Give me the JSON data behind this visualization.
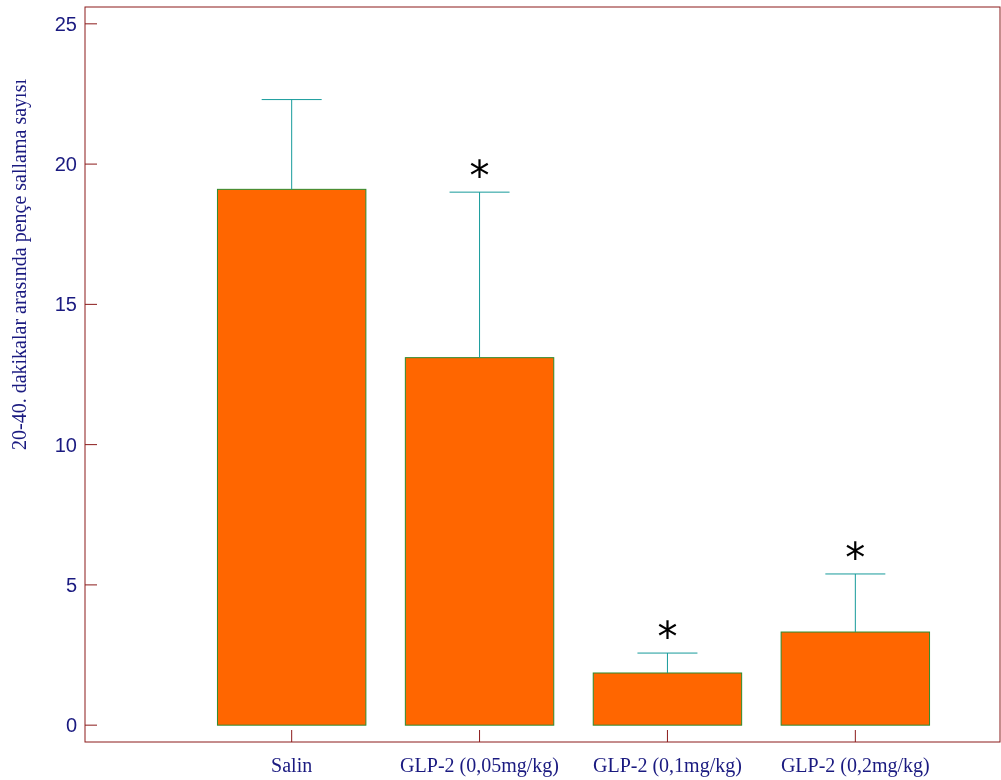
{
  "chart_data": {
    "type": "bar",
    "ylabel": "20-40. dakikalar arasında pençe sallama sayısı",
    "categories": [
      "Salin",
      "GLP-2 (0,05mg/kg)",
      "GLP-2 (0,1mg/kg)",
      "GLP-2 (0,2mg/kg)"
    ],
    "values": [
      19.1,
      13.1,
      1.86,
      3.32
    ],
    "color": "#ff6600",
    "errors": [
      [
        19.1,
        22.3
      ],
      [
        13.1,
        19.0
      ],
      [
        1.86,
        2.57
      ],
      [
        3.32,
        5.39
      ]
    ],
    "ylim": [
      -0.6,
      25.6
    ],
    "yticks": [
      0,
      5,
      10,
      15,
      20,
      25
    ],
    "grid": false,
    "annotations": [
      {
        "text": "*",
        "x": "GLP-2 (0,05mg/kg)",
        "y": 19.0
      },
      {
        "text": "*",
        "x": "GLP-2 (0,1mg/kg)",
        "y": 2.57
      },
      {
        "text": "*",
        "x": "GLP-2 (0,2mg/kg)",
        "y": 5.39
      }
    ]
  }
}
